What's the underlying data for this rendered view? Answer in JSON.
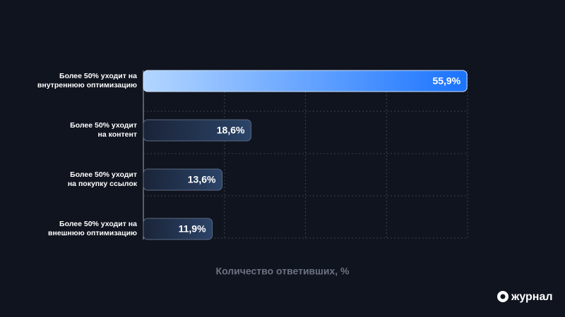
{
  "chart_data": {
    "type": "bar",
    "orientation": "horizontal",
    "categories": [
      "Более 50% уходит на\nвнутреннюю оптимизацию",
      "Более 50% уходит\nна контент",
      "Более 50% уходит\nна покупку ссылок",
      "Более 50% уходит на\nвнешнюю оптимизацию"
    ],
    "values": [
      55.9,
      18.6,
      13.6,
      11.9
    ],
    "value_labels": [
      "55,9%",
      "18,6%",
      "13,6%",
      "11,9%"
    ],
    "colors": [
      "#1a73ff",
      "#2b4468",
      "#2b4468",
      "#2b4468"
    ],
    "xlabel": "Количество ответивших, %",
    "xlim": [
      0,
      56
    ],
    "xticks": [
      0,
      14,
      28,
      42,
      56
    ],
    "tick_labels": false,
    "grid": true
  },
  "brand": "журнал"
}
